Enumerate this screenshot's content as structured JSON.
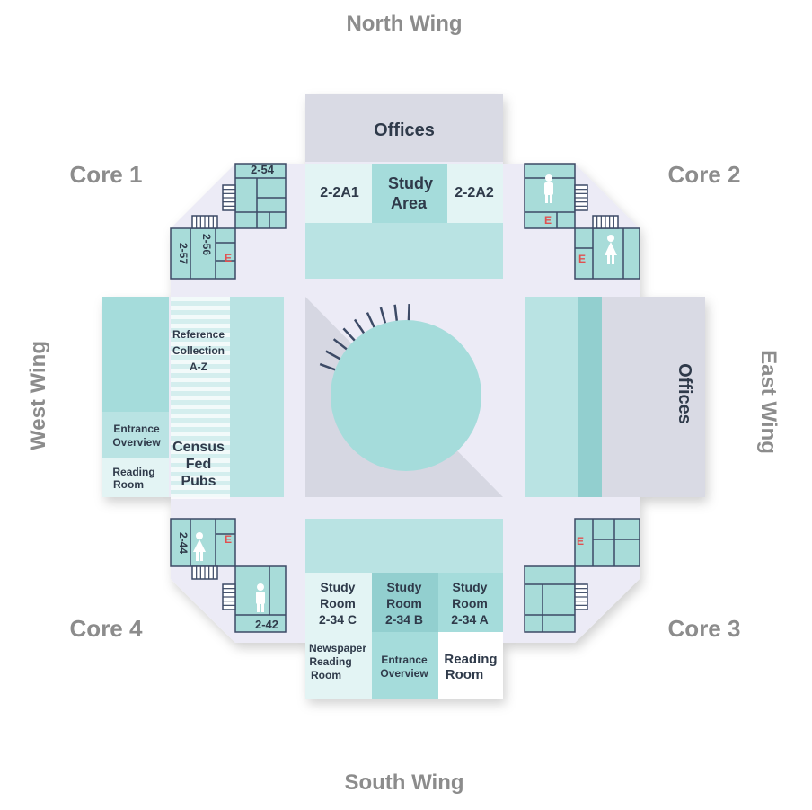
{
  "wings": {
    "north": "North Wing",
    "south": "South Wing",
    "east": "East Wing",
    "west": "West Wing"
  },
  "cores": {
    "core1": "Core 1",
    "core2": "Core 2",
    "core3": "Core 3",
    "core4": "Core 4"
  },
  "north": {
    "offices": "Offices",
    "room_a1": "2-2A1",
    "study_area_1": "Study",
    "study_area_2": "Area",
    "room_a2": "2-2A2"
  },
  "east": {
    "offices": "Offices"
  },
  "west": {
    "ref_1": "Reference",
    "ref_2": "Collection",
    "ref_3": "A-Z",
    "census_1": "Census",
    "census_2": "Fed",
    "census_3": "Pubs",
    "entrance_1": "Entrance",
    "entrance_2": "Overview",
    "reading_1": "Reading",
    "reading_2": "Room"
  },
  "south": {
    "study_c": [
      "Study",
      "Room",
      "2-34 C"
    ],
    "study_b": [
      "Study",
      "Room",
      "2-34 B"
    ],
    "study_a": [
      "Study",
      "Room",
      "2-34 A"
    ],
    "newspaper": [
      "Newspaper",
      "Reading",
      "Room"
    ],
    "entrance": [
      "Entrance",
      "Overview"
    ],
    "reading": [
      "Reading",
      "Room"
    ]
  },
  "core_rooms": {
    "r254": "2-54",
    "r256": "2-56",
    "r257": "2-57",
    "r244": "2-44",
    "r242": "2-42",
    "elevator": "E"
  },
  "colors": {
    "floor": "#ecebf6",
    "teal_light": "#b9e3e3",
    "teal_mid": "#a5dcdb",
    "teal_dark": "#92cfcf",
    "room_pale": "#e3f4f4",
    "office_gray": "#d9dae4",
    "atrium_gray": "#d6d7e2",
    "wall": "#3c4a66",
    "label": "#2f3a4a",
    "wing_label": "#8c8c8c",
    "elevator_red": "#e05050"
  }
}
